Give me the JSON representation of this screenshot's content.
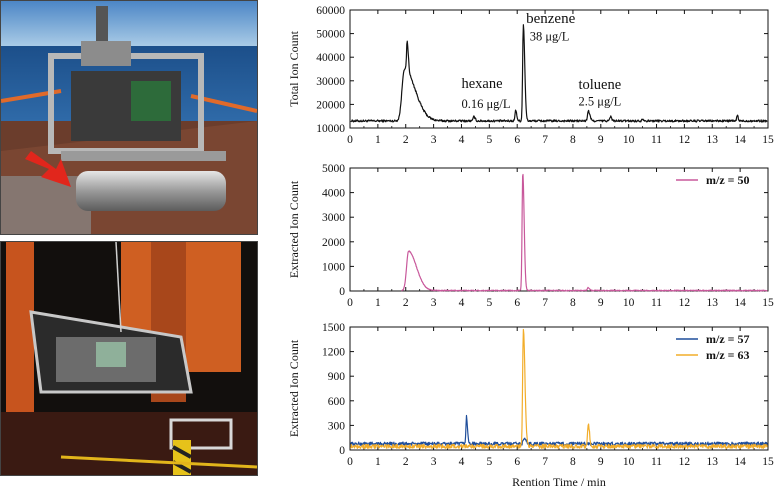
{
  "photos": [
    {
      "name": "photo-sensor-on-deck"
    },
    {
      "name": "photo-sensor-deployment-night"
    }
  ],
  "chart_data": [
    {
      "type": "line",
      "ylabel": "Total Ion Count",
      "xlim": [
        0,
        15
      ],
      "ylim": [
        10000,
        60000
      ],
      "xticks": [
        0,
        1,
        2,
        3,
        4,
        5,
        6,
        7,
        8,
        9,
        10,
        11,
        12,
        13,
        14,
        15
      ],
      "yticks": [
        10000,
        20000,
        30000,
        40000,
        50000,
        60000
      ],
      "baseline": 13000,
      "series": [
        {
          "color": "#111111",
          "peaks": [
            {
              "x": 1.95,
              "height": 22000,
              "rise": 0.12,
              "tail": 0.55
            },
            {
              "x": 2.05,
              "height": 12500,
              "rise": 0.03,
              "tail": 0.06
            },
            {
              "x": 4.45,
              "height": 1800,
              "rise": 0.04,
              "tail": 0.06
            },
            {
              "x": 5.95,
              "height": 4500,
              "rise": 0.04,
              "tail": 0.05
            },
            {
              "x": 6.22,
              "height": 41000,
              "rise": 0.035,
              "tail": 0.07
            },
            {
              "x": 8.55,
              "height": 4200,
              "rise": 0.04,
              "tail": 0.08
            },
            {
              "x": 9.35,
              "height": 1800,
              "rise": 0.04,
              "tail": 0.06
            },
            {
              "x": 10.5,
              "height": 900,
              "rise": 0.04,
              "tail": 0.06
            },
            {
              "x": 13.9,
              "height": 2500,
              "rise": 0.03,
              "tail": 0.04
            }
          ],
          "noise": 450
        }
      ],
      "annotations": [
        {
          "text": "benzene",
          "x": 6.32,
          "y": 54500,
          "size": 15
        },
        {
          "text": "38 μg/L",
          "x": 6.45,
          "y": 47000,
          "size": 12.5
        },
        {
          "text": "hexane",
          "x": 4.0,
          "y": 27000,
          "size": 14.5
        },
        {
          "text": "0.16 μg/L",
          "x": 4.0,
          "y": 18500,
          "size": 12.5
        },
        {
          "text": "toluene",
          "x": 8.2,
          "y": 26500,
          "size": 14.5
        },
        {
          "text": "2.5 μg/L",
          "x": 8.2,
          "y": 19500,
          "size": 12.5
        }
      ]
    },
    {
      "type": "line",
      "ylabel": "Extracted Ion Count",
      "xlim": [
        0,
        15
      ],
      "ylim": [
        0,
        5000
      ],
      "xticks": [
        0,
        1,
        2,
        3,
        4,
        5,
        6,
        7,
        8,
        9,
        10,
        11,
        12,
        13,
        14,
        15
      ],
      "yticks": [
        0,
        1000,
        2000,
        3000,
        4000,
        5000
      ],
      "baseline": 20,
      "legend": "top-right",
      "series": [
        {
          "name": "m/z = 50",
          "color": "#c8589b",
          "start": 1.85,
          "peaks": [
            {
              "x": 2.1,
              "height": 1600,
              "rise": 0.1,
              "tail": 0.4
            },
            {
              "x": 6.2,
              "height": 4780,
              "rise": 0.035,
              "tail": 0.07
            },
            {
              "x": 8.55,
              "height": 120,
              "rise": 0.04,
              "tail": 0.06
            }
          ],
          "noise": 18
        }
      ]
    },
    {
      "type": "line",
      "ylabel": "Extracted Ion Count",
      "xlabel": "Rention Time / min",
      "xlim": [
        0,
        15
      ],
      "ylim": [
        0,
        1500
      ],
      "xticks": [
        0,
        1,
        2,
        3,
        4,
        5,
        6,
        7,
        8,
        9,
        10,
        11,
        12,
        13,
        14,
        15
      ],
      "yticks": [
        0,
        300,
        600,
        900,
        1200,
        1500
      ],
      "legend": "top-right",
      "series": [
        {
          "name": "m/z = 57",
          "color": "#1f4e9b",
          "baseline": 75,
          "peaks": [
            {
              "x": 4.18,
              "height": 330,
              "rise": 0.03,
              "tail": 0.05
            },
            {
              "x": 6.25,
              "height": 60,
              "rise": 0.05,
              "tail": 0.1
            }
          ],
          "noise": 22
        },
        {
          "name": "m/z = 63",
          "color": "#f2ad2a",
          "baseline": 45,
          "peaks": [
            {
              "x": 6.22,
              "height": 1440,
              "rise": 0.035,
              "tail": 0.08
            },
            {
              "x": 8.55,
              "height": 280,
              "rise": 0.035,
              "tail": 0.06
            }
          ],
          "noise": 25
        }
      ]
    }
  ]
}
